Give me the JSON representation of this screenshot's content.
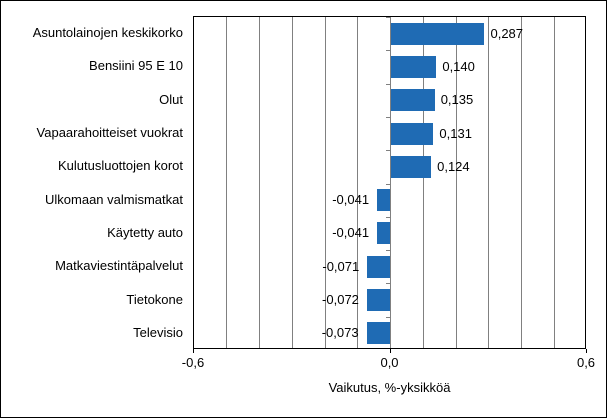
{
  "chart_data": {
    "type": "bar",
    "orientation": "horizontal",
    "title": "",
    "xlabel": "Vaikutus, %-yksikköä",
    "ylabel": "",
    "categories": [
      "Asuntolainojen keskikorko",
      "Bensiini 95 E 10",
      "Olut",
      "Vapaarahoitteiset vuokrat",
      "Kulutusluottojen korot",
      "Ulkomaan valmismatkat",
      "Käytetty auto",
      "Matkaviestintäpalvelut",
      "Tietokone",
      "Televisio"
    ],
    "values": [
      0.287,
      0.14,
      0.135,
      0.131,
      0.124,
      -0.041,
      -0.041,
      -0.071,
      -0.072,
      -0.073
    ],
    "value_labels": [
      "0,287",
      "0,140",
      "0,135",
      "0,131",
      "0,124",
      "-0,041",
      "-0,041",
      "-0,071",
      "-0,072",
      "-0,073"
    ],
    "xlim": [
      -0.6,
      0.6
    ],
    "xtick_values": [
      -0.6,
      0.0,
      0.6
    ],
    "xtick_labels": [
      "-0,6",
      "0,0",
      "0,6"
    ],
    "gridline_step": 0.1,
    "grid": true,
    "legend": "none",
    "colors": {
      "bar": "#1f6bb4",
      "gridline": "#808080",
      "axis": "#000000",
      "background": "#ffffff",
      "text": "#000000"
    }
  }
}
